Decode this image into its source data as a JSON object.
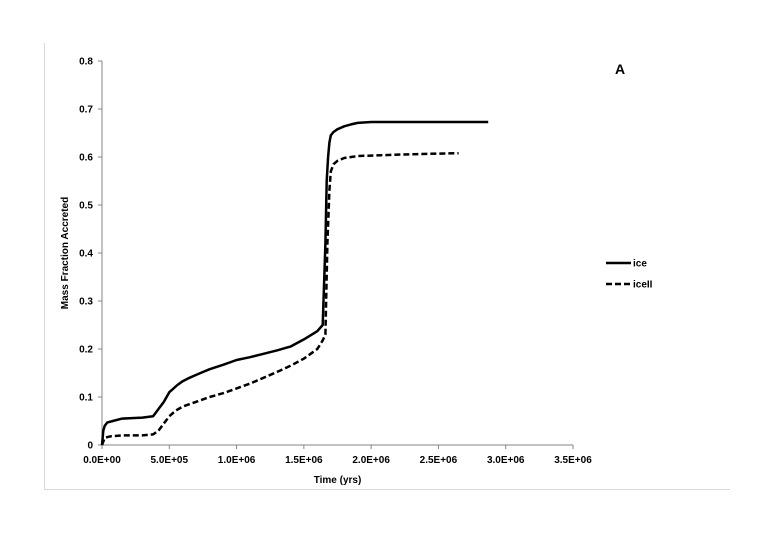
{
  "chart_data": {
    "type": "line",
    "title": "",
    "panel_label": "A",
    "xlabel": "Time (yrs)",
    "ylabel": "Mass Fraction Accreted",
    "xlim": [
      0,
      3500000
    ],
    "ylim": [
      0,
      0.8
    ],
    "x_ticks": [
      0,
      500000,
      1000000,
      1500000,
      2000000,
      2500000,
      3000000,
      3500000
    ],
    "x_tick_labels": [
      "0.0E+00",
      "5.0E+05",
      "1.0E+06",
      "1.5E+06",
      "2.0E+06",
      "2.5E+06",
      "3.0E+06",
      "3.5E+06"
    ],
    "y_ticks": [
      0,
      0.1,
      0.2,
      0.3,
      0.4,
      0.5,
      0.6,
      0.7,
      0.8
    ],
    "y_tick_labels": [
      "0",
      "0.1",
      "0.2",
      "0.3",
      "0.4",
      "0.5",
      "0.6",
      "0.7",
      "0.8"
    ],
    "grid": false,
    "legend_position": "right",
    "series": [
      {
        "name": "ice",
        "style": "solid",
        "color": "#000000",
        "x": [
          0,
          10000,
          20000,
          40000,
          80000,
          150000,
          300000,
          380000,
          420000,
          460000,
          500000,
          520000,
          560000,
          600000,
          650000,
          700000,
          750000,
          800000,
          900000,
          1000000,
          1100000,
          1200000,
          1300000,
          1400000,
          1500000,
          1600000,
          1640000,
          1660000,
          1670000,
          1680000,
          1690000,
          1700000,
          1720000,
          1750000,
          1800000,
          1850000,
          1900000,
          2000000,
          2200000,
          2500000,
          2870000
        ],
        "y": [
          0,
          0.03,
          0.04,
          0.047,
          0.05,
          0.055,
          0.057,
          0.06,
          0.075,
          0.09,
          0.11,
          0.115,
          0.125,
          0.133,
          0.14,
          0.146,
          0.152,
          0.158,
          0.167,
          0.177,
          0.183,
          0.19,
          0.197,
          0.205,
          0.22,
          0.237,
          0.25,
          0.42,
          0.55,
          0.6,
          0.63,
          0.645,
          0.652,
          0.658,
          0.664,
          0.668,
          0.671,
          0.673,
          0.673,
          0.673,
          0.673
        ]
      },
      {
        "name": "iceII",
        "style": "dashed",
        "color": "#000000",
        "x": [
          0,
          20000,
          60000,
          150000,
          300000,
          380000,
          420000,
          460000,
          500000,
          550000,
          600000,
          700000,
          800000,
          900000,
          1000000,
          1100000,
          1200000,
          1300000,
          1400000,
          1500000,
          1600000,
          1640000,
          1660000,
          1675000,
          1690000,
          1700000,
          1720000,
          1750000,
          1800000,
          1900000,
          2000000,
          2200000,
          2500000,
          2650000
        ],
        "y": [
          0,
          0.015,
          0.018,
          0.02,
          0.02,
          0.022,
          0.03,
          0.045,
          0.06,
          0.072,
          0.08,
          0.09,
          0.1,
          0.108,
          0.118,
          0.128,
          0.14,
          0.152,
          0.165,
          0.18,
          0.2,
          0.218,
          0.23,
          0.42,
          0.53,
          0.57,
          0.585,
          0.592,
          0.598,
          0.602,
          0.603,
          0.605,
          0.607,
          0.608
        ]
      }
    ]
  }
}
